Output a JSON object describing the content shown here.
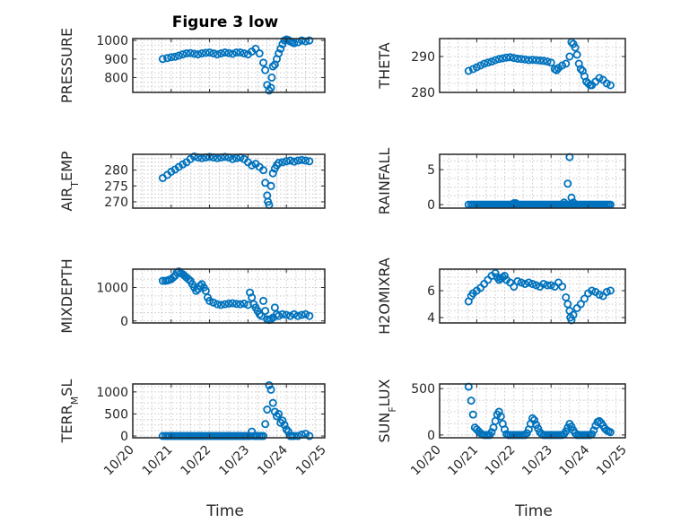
{
  "figure": {
    "title": "Figure 3 low",
    "xlabel": "Time"
  },
  "x_ticks": [
    "10/20",
    "10/21",
    "10/22",
    "10/23",
    "10/24",
    "10/25"
  ],
  "marker_color": "#0072bd",
  "chart_data": [
    {
      "type": "scatter",
      "ylabel": "PRESSURE",
      "xlim": [
        "10/20",
        "10/25"
      ],
      "ylim": [
        720,
        1010
      ],
      "yticks": [
        800,
        900,
        1000
      ],
      "ytick_labels": [
        "800",
        "900",
        "1000"
      ],
      "grid": true,
      "x": [
        0.78,
        0.9,
        1.0,
        1.1,
        1.2,
        1.3,
        1.4,
        1.5,
        1.6,
        1.7,
        1.8,
        1.9,
        2.0,
        2.1,
        2.2,
        2.3,
        2.4,
        2.5,
        2.6,
        2.7,
        2.8,
        2.9,
        3.0,
        3.1,
        3.2,
        3.3,
        3.4,
        3.45,
        3.5,
        3.55,
        3.6,
        3.62,
        3.65,
        3.7,
        3.75,
        3.8,
        3.85,
        3.9,
        3.95,
        4.0,
        4.05,
        4.1,
        4.15,
        4.2,
        4.3,
        4.4,
        4.5,
        4.6
      ],
      "y": [
        900,
        905,
        910,
        912,
        918,
        925,
        930,
        932,
        928,
        925,
        930,
        933,
        935,
        930,
        925,
        930,
        935,
        932,
        928,
        935,
        935,
        930,
        925,
        940,
        955,
        930,
        880,
        840,
        760,
        730,
        745,
        800,
        860,
        870,
        900,
        930,
        955,
        980,
        1000,
        1005,
        1002,
        995,
        990,
        985,
        990,
        1000,
        995,
        1000
      ]
    },
    {
      "type": "scatter",
      "ylabel": "THETA",
      "xlim": [
        "10/20",
        "10/25"
      ],
      "ylim": [
        280,
        295
      ],
      "yticks": [
        280,
        290
      ],
      "ytick_labels": [
        "280",
        "290"
      ],
      "grid": true,
      "x": [
        0.78,
        0.9,
        1.0,
        1.1,
        1.2,
        1.3,
        1.4,
        1.5,
        1.6,
        1.7,
        1.8,
        1.9,
        2.0,
        2.1,
        2.2,
        2.3,
        2.4,
        2.5,
        2.6,
        2.7,
        2.8,
        2.9,
        3.0,
        3.1,
        3.15,
        3.2,
        3.3,
        3.4,
        3.5,
        3.55,
        3.6,
        3.65,
        3.7,
        3.75,
        3.8,
        3.85,
        3.9,
        3.95,
        4.0,
        4.05,
        4.1,
        4.2,
        4.3,
        4.4,
        4.5,
        4.6
      ],
      "y": [
        286.0,
        286.5,
        287.0,
        287.5,
        288.0,
        288.3,
        288.6,
        289.0,
        289.3,
        289.5,
        289.7,
        289.8,
        289.6,
        289.4,
        289.3,
        289.2,
        289.0,
        289.1,
        289.0,
        288.9,
        288.8,
        288.6,
        288.3,
        286.5,
        286.2,
        286.8,
        287.5,
        288.0,
        290.0,
        294.0,
        293.5,
        292.5,
        290.5,
        288.0,
        286.5,
        286.0,
        284.5,
        283.0,
        282.5,
        282.0,
        282.0,
        283.0,
        284.0,
        283.5,
        282.5,
        282.0
      ]
    },
    {
      "type": "scatter",
      "ylabel": "AIR_TEMP",
      "xlim": [
        "10/20",
        "10/25"
      ],
      "ylim": [
        268,
        285
      ],
      "yticks": [
        270,
        275,
        280
      ],
      "ytick_labels": [
        "270",
        "275",
        "280"
      ],
      "grid": true,
      "x": [
        0.78,
        0.9,
        1.0,
        1.1,
        1.2,
        1.3,
        1.4,
        1.5,
        1.6,
        1.7,
        1.8,
        1.9,
        2.0,
        2.1,
        2.2,
        2.3,
        2.4,
        2.5,
        2.6,
        2.7,
        2.8,
        2.9,
        3.0,
        3.1,
        3.2,
        3.3,
        3.4,
        3.45,
        3.5,
        3.52,
        3.55,
        3.6,
        3.65,
        3.7,
        3.75,
        3.8,
        3.9,
        4.0,
        4.1,
        4.2,
        4.3,
        4.4,
        4.5,
        4.6
      ],
      "y": [
        277.5,
        278.5,
        279.5,
        280.2,
        281.0,
        281.8,
        282.5,
        283.5,
        284.3,
        284.0,
        283.8,
        284.0,
        284.2,
        284.0,
        283.8,
        284.0,
        284.2,
        284.0,
        283.5,
        283.8,
        284.0,
        283.5,
        282.5,
        281.5,
        282.0,
        281.0,
        280.0,
        276.0,
        272.0,
        270.0,
        269.0,
        275.0,
        279.0,
        280.5,
        281.5,
        282.3,
        282.5,
        282.8,
        283.0,
        282.7,
        283.0,
        283.2,
        283.0,
        282.8
      ]
    },
    {
      "type": "scatter",
      "ylabel": "RAINFALL",
      "xlim": [
        "10/20",
        "10/25"
      ],
      "ylim": [
        -0.5,
        7.2
      ],
      "yticks": [
        0,
        5
      ],
      "ytick_labels": [
        "0",
        "5"
      ],
      "grid": true,
      "x": [
        0.78,
        0.85,
        0.9,
        0.95,
        1.0,
        1.05,
        1.1,
        1.15,
        1.2,
        1.25,
        1.3,
        1.35,
        1.4,
        1.45,
        1.5,
        1.55,
        1.6,
        1.65,
        1.7,
        1.75,
        1.8,
        1.85,
        1.9,
        1.95,
        2.0,
        2.05,
        2.1,
        2.15,
        2.2,
        2.25,
        2.3,
        2.35,
        2.4,
        2.45,
        2.5,
        2.55,
        2.6,
        2.65,
        2.7,
        2.75,
        2.8,
        2.85,
        2.9,
        2.95,
        3.0,
        3.05,
        3.1,
        3.15,
        3.2,
        3.25,
        3.3,
        3.35,
        3.4,
        3.45,
        3.5,
        3.55,
        3.6,
        3.65,
        3.7,
        3.75,
        3.8,
        3.85,
        3.9,
        3.95,
        4.0,
        4.05,
        4.1,
        4.15,
        4.2,
        4.25,
        4.3,
        4.35,
        4.4,
        4.45,
        4.5,
        4.55,
        4.6,
        2.0,
        2.05,
        3.35,
        3.45,
        3.5,
        3.55,
        3.6
      ],
      "y": [
        0,
        0,
        0,
        0,
        0,
        0,
        0,
        0,
        0,
        0,
        0,
        0,
        0,
        0,
        0,
        0,
        0,
        0,
        0,
        0,
        0,
        0,
        0,
        0,
        0,
        0,
        0,
        0,
        0,
        0,
        0,
        0,
        0,
        0,
        0,
        0,
        0,
        0,
        0,
        0,
        0,
        0,
        0,
        0,
        0,
        0,
        0,
        0,
        0,
        0,
        0,
        0,
        0,
        0,
        0,
        0,
        0,
        0,
        0,
        0,
        0,
        0,
        0,
        0,
        0,
        0,
        0,
        0,
        0,
        0,
        0,
        0,
        0,
        0,
        0,
        0,
        0,
        0.2,
        0.2,
        0.3,
        3.0,
        6.8,
        1.0,
        0.3
      ]
    },
    {
      "type": "scatter",
      "ylabel": "MIXDEPTH",
      "xlim": [
        "10/20",
        "10/25"
      ],
      "ylim": [
        -60,
        1550
      ],
      "yticks": [
        0,
        1000
      ],
      "ytick_labels": [
        "0",
        "1000"
      ],
      "grid": true,
      "x": [
        0.78,
        0.85,
        0.9,
        0.95,
        1.0,
        1.05,
        1.1,
        1.15,
        1.2,
        1.25,
        1.3,
        1.35,
        1.4,
        1.45,
        1.5,
        1.55,
        1.6,
        1.65,
        1.7,
        1.75,
        1.8,
        1.85,
        1.9,
        1.95,
        2.0,
        2.1,
        2.2,
        2.3,
        2.4,
        2.5,
        2.6,
        2.7,
        2.8,
        2.9,
        3.0,
        3.05,
        3.1,
        3.15,
        3.2,
        3.25,
        3.3,
        3.35,
        3.4,
        3.45,
        3.5,
        3.55,
        3.6,
        3.65,
        3.7,
        3.75,
        3.8,
        3.9,
        4.0,
        4.1,
        4.2,
        4.3,
        4.4,
        4.5,
        4.6
      ],
      "y": [
        1200,
        1200,
        1210,
        1230,
        1250,
        1300,
        1350,
        1450,
        1480,
        1430,
        1400,
        1350,
        1300,
        1250,
        1200,
        1100,
        1000,
        900,
        950,
        1050,
        1100,
        1000,
        900,
        700,
        600,
        550,
        500,
        480,
        500,
        520,
        530,
        510,
        500,
        520,
        480,
        850,
        700,
        500,
        400,
        300,
        200,
        150,
        600,
        300,
        50,
        30,
        50,
        100,
        400,
        200,
        150,
        200,
        180,
        150,
        200,
        150,
        180,
        200,
        150
      ]
    },
    {
      "type": "scatter",
      "ylabel": "H2OMIXRA",
      "xlim": [
        "10/20",
        "10/25"
      ],
      "ylim": [
        3.6,
        7.6
      ],
      "yticks": [
        4,
        6
      ],
      "ytick_labels": [
        "4",
        "6"
      ],
      "grid": true,
      "x": [
        0.78,
        0.85,
        0.9,
        1.0,
        1.1,
        1.2,
        1.3,
        1.4,
        1.5,
        1.55,
        1.6,
        1.65,
        1.7,
        1.75,
        1.8,
        1.9,
        2.0,
        2.1,
        2.2,
        2.3,
        2.4,
        2.5,
        2.6,
        2.7,
        2.8,
        2.9,
        3.0,
        3.1,
        3.2,
        3.3,
        3.4,
        3.45,
        3.5,
        3.52,
        3.55,
        3.6,
        3.7,
        3.8,
        3.9,
        4.0,
        4.1,
        4.2,
        4.3,
        4.4,
        4.5,
        4.6
      ],
      "y": [
        5.2,
        5.6,
        5.8,
        6.0,
        6.2,
        6.5,
        6.8,
        7.1,
        7.3,
        7.0,
        6.8,
        6.9,
        7.0,
        7.1,
        6.8,
        6.6,
        6.3,
        6.7,
        6.6,
        6.5,
        6.6,
        6.5,
        6.4,
        6.3,
        6.5,
        6.4,
        6.4,
        6.3,
        6.6,
        6.3,
        5.5,
        5.0,
        4.5,
        4.0,
        3.8,
        4.2,
        4.7,
        5.0,
        5.4,
        5.8,
        6.0,
        5.9,
        5.7,
        5.6,
        5.9,
        6.0
      ]
    },
    {
      "type": "scatter",
      "ylabel": "TERR_MSL",
      "xlim": [
        "10/20",
        "10/25"
      ],
      "ylim": [
        -40,
        1180
      ],
      "yticks": [
        0,
        500,
        1000
      ],
      "ytick_labels": [
        "0",
        "500",
        "1000"
      ],
      "grid": true,
      "x": [
        0.78,
        0.85,
        0.9,
        0.95,
        1.0,
        1.05,
        1.1,
        1.15,
        1.2,
        1.25,
        1.3,
        1.35,
        1.4,
        1.45,
        1.5,
        1.55,
        1.6,
        1.65,
        1.7,
        1.75,
        1.8,
        1.85,
        1.9,
        1.95,
        2.0,
        2.05,
        2.1,
        2.15,
        2.2,
        2.25,
        2.3,
        2.35,
        2.4,
        2.45,
        2.5,
        2.55,
        2.6,
        2.65,
        2.7,
        2.75,
        2.8,
        2.85,
        2.9,
        2.95,
        3.0,
        3.05,
        3.1,
        3.15,
        3.2,
        3.25,
        3.3,
        3.35,
        3.4,
        3.45,
        3.5,
        3.55,
        3.6,
        3.65,
        3.7,
        3.75,
        3.8,
        3.85,
        3.9,
        3.95,
        4.0,
        4.05,
        4.1,
        4.15,
        4.2,
        4.3,
        4.4,
        4.5,
        4.6
      ],
      "y": [
        0,
        0,
        0,
        0,
        0,
        0,
        0,
        0,
        0,
        0,
        0,
        0,
        0,
        0,
        0,
        0,
        0,
        0,
        0,
        0,
        0,
        0,
        0,
        0,
        0,
        0,
        0,
        0,
        0,
        0,
        0,
        0,
        0,
        0,
        0,
        0,
        0,
        0,
        0,
        0,
        0,
        0,
        0,
        0,
        0,
        0,
        100,
        0,
        0,
        0,
        0,
        0,
        0,
        270,
        600,
        1150,
        1050,
        750,
        550,
        450,
        500,
        300,
        350,
        250,
        150,
        100,
        0,
        0,
        0,
        0,
        30,
        50,
        0
      ]
    },
    {
      "type": "scatter",
      "ylabel": "SUN_FLUX",
      "xlim": [
        "10/20",
        "10/25"
      ],
      "ylim": [
        -30,
        550
      ],
      "yticks": [
        0,
        500
      ],
      "ytick_labels": [
        "0",
        "500"
      ],
      "grid": true,
      "x": [
        0.78,
        0.85,
        0.9,
        0.95,
        1.0,
        1.05,
        1.1,
        1.15,
        1.2,
        1.25,
        1.3,
        1.35,
        1.4,
        1.45,
        1.5,
        1.55,
        1.6,
        1.65,
        1.7,
        1.75,
        1.8,
        1.85,
        1.9,
        1.95,
        2.0,
        2.05,
        2.1,
        2.15,
        2.2,
        2.25,
        2.3,
        2.35,
        2.4,
        2.45,
        2.5,
        2.55,
        2.6,
        2.65,
        2.7,
        2.75,
        2.8,
        2.85,
        2.9,
        2.95,
        3.0,
        3.05,
        3.1,
        3.15,
        3.2,
        3.25,
        3.3,
        3.35,
        3.4,
        3.45,
        3.5,
        3.55,
        3.6,
        3.65,
        3.7,
        3.75,
        3.8,
        3.85,
        3.9,
        3.95,
        4.0,
        4.05,
        4.1,
        4.15,
        4.2,
        4.25,
        4.3,
        4.35,
        4.4,
        4.45,
        4.5,
        4.55,
        4.6
      ],
      "y": [
        520,
        370,
        220,
        80,
        60,
        40,
        20,
        5,
        0,
        0,
        0,
        0,
        30,
        80,
        150,
        220,
        250,
        200,
        120,
        60,
        10,
        0,
        0,
        0,
        0,
        0,
        0,
        0,
        0,
        0,
        0,
        20,
        60,
        120,
        180,
        160,
        110,
        70,
        30,
        10,
        0,
        0,
        0,
        0,
        0,
        0,
        0,
        0,
        0,
        0,
        0,
        10,
        40,
        80,
        120,
        90,
        50,
        20,
        0,
        0,
        0,
        0,
        0,
        0,
        0,
        0,
        10,
        50,
        100,
        140,
        150,
        130,
        100,
        70,
        50,
        40,
        30
      ]
    }
  ]
}
